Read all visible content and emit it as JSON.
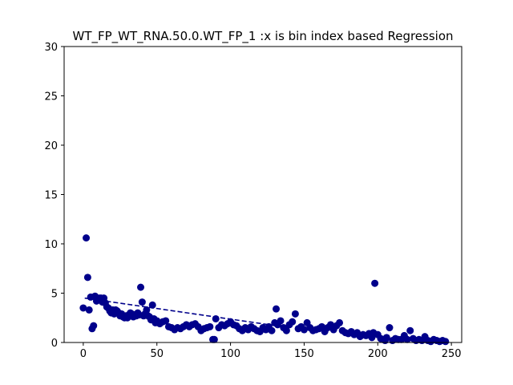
{
  "chart_data": {
    "type": "scatter",
    "title": "WT_FP_WT_RNA.50.0.WT_FP_1 :x is bin index based Regression",
    "xlabel": "",
    "ylabel": "",
    "xlim": [
      -13,
      257
    ],
    "ylim": [
      0,
      30
    ],
    "xticks": [
      0,
      50,
      100,
      150,
      200,
      250
    ],
    "yticks": [
      0,
      5,
      10,
      15,
      20,
      25,
      30
    ],
    "grid": false,
    "colors": {
      "points": "#00008b",
      "regression": "#00008b",
      "axes": "#000000"
    },
    "regression": {
      "x": [
        1,
        131
      ],
      "y": [
        4.5,
        1.7
      ],
      "style": "dashed"
    },
    "points": {
      "x": [
        0,
        2,
        3,
        4,
        5,
        6,
        7,
        8,
        9,
        10,
        11,
        12,
        13,
        14,
        15,
        16,
        17,
        18,
        19,
        20,
        21,
        22,
        23,
        24,
        25,
        26,
        27,
        28,
        29,
        30,
        31,
        32,
        33,
        34,
        35,
        36,
        37,
        38,
        39,
        40,
        41,
        42,
        43,
        44,
        45,
        46,
        47,
        48,
        49,
        50,
        52,
        54,
        56,
        58,
        60,
        62,
        64,
        66,
        68,
        70,
        72,
        74,
        76,
        78,
        80,
        82,
        84,
        86,
        88,
        89,
        90,
        92,
        94,
        96,
        98,
        100,
        102,
        104,
        106,
        108,
        110,
        112,
        114,
        116,
        118,
        120,
        122,
        124,
        126,
        128,
        130,
        131,
        132,
        134,
        136,
        138,
        140,
        142,
        144,
        146,
        148,
        150,
        152,
        154,
        156,
        158,
        160,
        162,
        164,
        166,
        168,
        170,
        172,
        174,
        176,
        178,
        180,
        182,
        184,
        186,
        188,
        190,
        192,
        194,
        196,
        197,
        198,
        200,
        202,
        204,
        205,
        206,
        208,
        210,
        212,
        214,
        216,
        218,
        220,
        222,
        224,
        226,
        228,
        230,
        232,
        234,
        236,
        238,
        240,
        242,
        244,
        246
      ],
      "y": [
        3.5,
        10.6,
        6.6,
        3.3,
        4.6,
        1.4,
        1.7,
        4.7,
        4.2,
        4.3,
        4.5,
        4.5,
        4.1,
        4.5,
        4.0,
        3.6,
        3.5,
        3.2,
        3.0,
        3.3,
        2.9,
        3.3,
        3.2,
        3.0,
        2.7,
        2.9,
        2.6,
        2.5,
        2.7,
        2.5,
        2.8,
        3.0,
        2.9,
        2.6,
        2.8,
        2.7,
        3.0,
        2.8,
        5.6,
        4.1,
        2.7,
        2.9,
        3.3,
        2.7,
        2.6,
        2.3,
        3.8,
        2.4,
        2.0,
        2.2,
        1.9,
        2.1,
        2.2,
        1.6,
        1.5,
        1.3,
        1.5,
        1.4,
        1.6,
        1.8,
        1.6,
        1.8,
        1.9,
        1.6,
        1.2,
        1.4,
        1.5,
        1.6,
        0.3,
        0.3,
        2.4,
        1.5,
        1.8,
        1.7,
        1.9,
        2.1,
        1.8,
        1.7,
        1.4,
        1.2,
        1.5,
        1.3,
        1.6,
        1.4,
        1.2,
        1.1,
        1.5,
        1.3,
        1.6,
        1.2,
        2.0,
        3.4,
        1.8,
        2.2,
        1.5,
        1.2,
        1.8,
        2.1,
        2.9,
        1.4,
        1.6,
        1.3,
        2.0,
        1.5,
        1.2,
        1.3,
        1.4,
        1.6,
        1.1,
        1.5,
        1.8,
        1.3,
        1.7,
        2.0,
        1.2,
        1.0,
        0.9,
        1.1,
        0.8,
        1.0,
        0.6,
        0.8,
        0.7,
        0.9,
        0.5,
        1.0,
        6.0,
        0.8,
        0.4,
        0.3,
        0.2,
        0.5,
        1.5,
        0.2,
        0.4,
        0.3,
        0.3,
        0.7,
        0.3,
        1.2,
        0.4,
        0.2,
        0.3,
        0.2,
        0.6,
        0.2,
        0.1,
        0.3,
        0.2,
        0.1,
        0.2,
        0.1
      ]
    }
  }
}
